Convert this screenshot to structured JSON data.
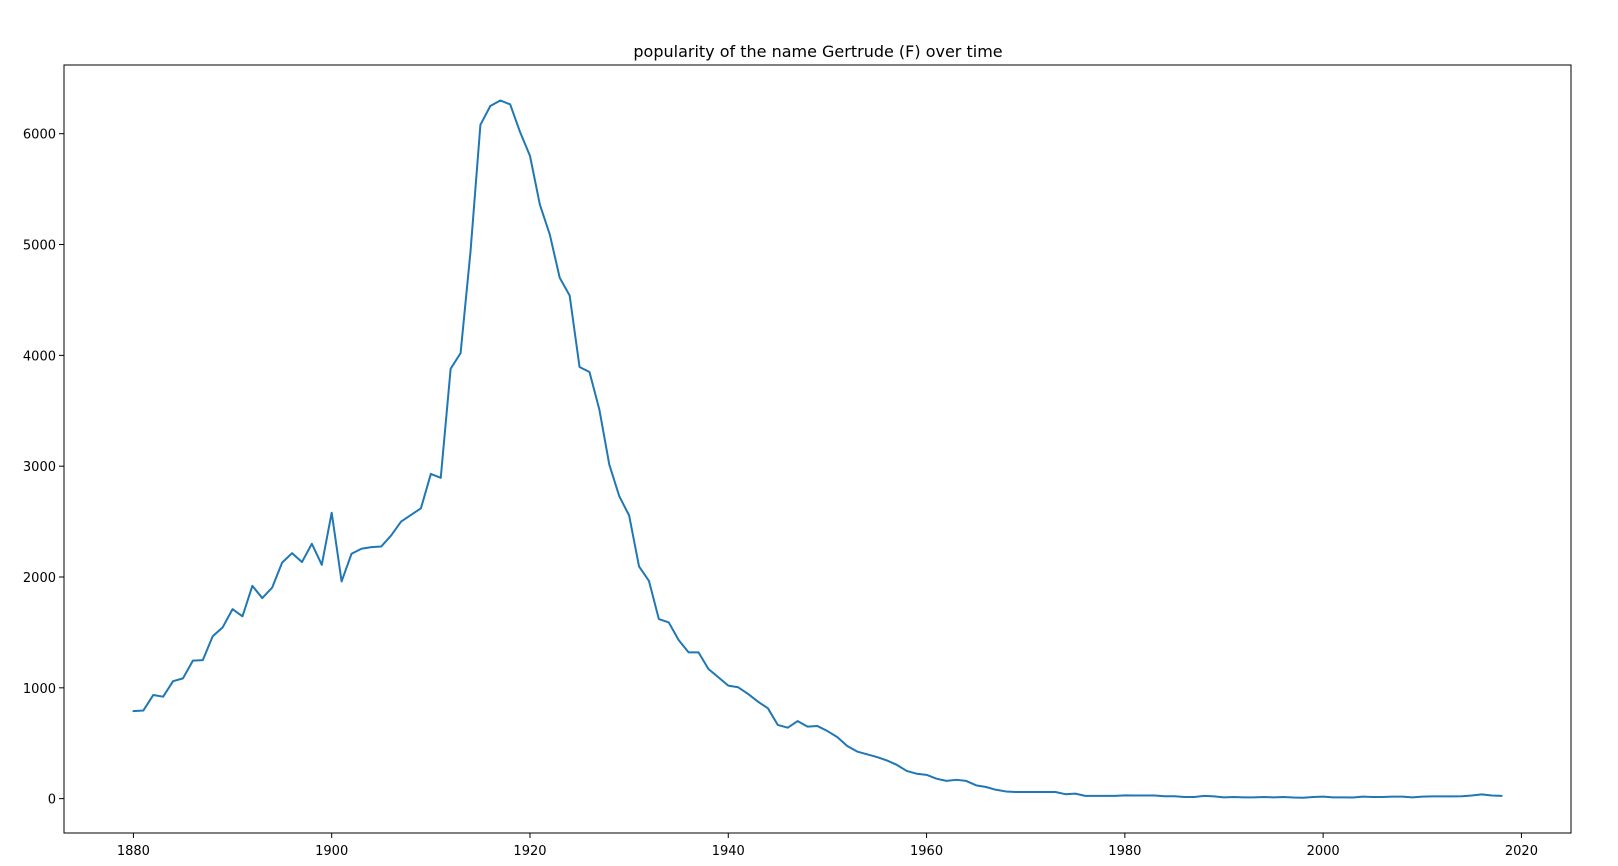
{
  "chart_data": {
    "type": "line",
    "title": "popularity of the name Gertrude (F) over time",
    "xlabel": "",
    "ylabel": "",
    "xlim": [
      1873,
      2025
    ],
    "ylim": [
      -310,
      6620
    ],
    "x_ticks": [
      1880,
      1900,
      1920,
      1940,
      1960,
      1980,
      2000,
      2020
    ],
    "y_ticks": [
      0,
      1000,
      2000,
      3000,
      4000,
      5000,
      6000
    ],
    "grid": false,
    "legend": "none",
    "colors": {
      "line": "#1f77b4",
      "axes": "#000000",
      "background": "#ffffff"
    },
    "series": [
      {
        "x": [
          1880,
          1881,
          1882,
          1883,
          1884,
          1885,
          1886,
          1887,
          1888,
          1889,
          1890,
          1891,
          1892,
          1893,
          1894,
          1895,
          1896,
          1897,
          1898,
          1899,
          1900,
          1901,
          1902,
          1903,
          1904,
          1905,
          1906,
          1907,
          1908,
          1909,
          1910,
          1911,
          1912,
          1913,
          1914,
          1915,
          1916,
          1917,
          1918,
          1919,
          1920,
          1921,
          1922,
          1923,
          1924,
          1925,
          1926,
          1927,
          1928,
          1929,
          1930,
          1931,
          1932,
          1933,
          1934,
          1935,
          1936,
          1937,
          1938,
          1939,
          1940,
          1941,
          1942,
          1943,
          1944,
          1945,
          1946,
          1947,
          1948,
          1949,
          1950,
          1951,
          1952,
          1953,
          1954,
          1955,
          1956,
          1957,
          1958,
          1959,
          1960,
          1961,
          1962,
          1963,
          1964,
          1965,
          1966,
          1967,
          1968,
          1969,
          1970,
          1971,
          1972,
          1973,
          1974,
          1975,
          1976,
          1977,
          1978,
          1979,
          1980,
          1981,
          1982,
          1983,
          1984,
          1985,
          1986,
          1987,
          1988,
          1989,
          1990,
          1991,
          1992,
          1993,
          1994,
          1995,
          1996,
          1997,
          1998,
          1999,
          2000,
          2001,
          2002,
          2003,
          2004,
          2005,
          2006,
          2007,
          2008,
          2009,
          2010,
          2011,
          2012,
          2013,
          2014,
          2015,
          2016,
          2017,
          2018
        ],
        "values": [
          790,
          795,
          935,
          920,
          1060,
          1085,
          1245,
          1250,
          1465,
          1545,
          1710,
          1645,
          1920,
          1810,
          1905,
          2130,
          2215,
          2135,
          2300,
          2110,
          2580,
          1960,
          2210,
          2255,
          2270,
          2275,
          2375,
          2500,
          2560,
          2620,
          2930,
          2895,
          3880,
          4020,
          4935,
          6080,
          6250,
          6300,
          6265,
          6015,
          5800,
          5360,
          5090,
          4700,
          4540,
          3895,
          3850,
          3510,
          3015,
          2730,
          2555,
          2095,
          1965,
          1620,
          1590,
          1430,
          1320,
          1320,
          1170,
          1095,
          1020,
          1005,
          945,
          875,
          815,
          665,
          640,
          700,
          650,
          655,
          610,
          555,
          475,
          425,
          400,
          375,
          345,
          305,
          250,
          225,
          215,
          180,
          160,
          170,
          160,
          120,
          105,
          80,
          65,
          60,
          60,
          60,
          60,
          60,
          40,
          45,
          25,
          25,
          25,
          25,
          30,
          28,
          28,
          28,
          22,
          22,
          15,
          15,
          25,
          20,
          12,
          15,
          12,
          12,
          15,
          12,
          15,
          10,
          8,
          15,
          18,
          12,
          12,
          10,
          18,
          15,
          15,
          18,
          18,
          12,
          18,
          20,
          20,
          20,
          22,
          28,
          38,
          28,
          25
        ]
      }
    ]
  }
}
